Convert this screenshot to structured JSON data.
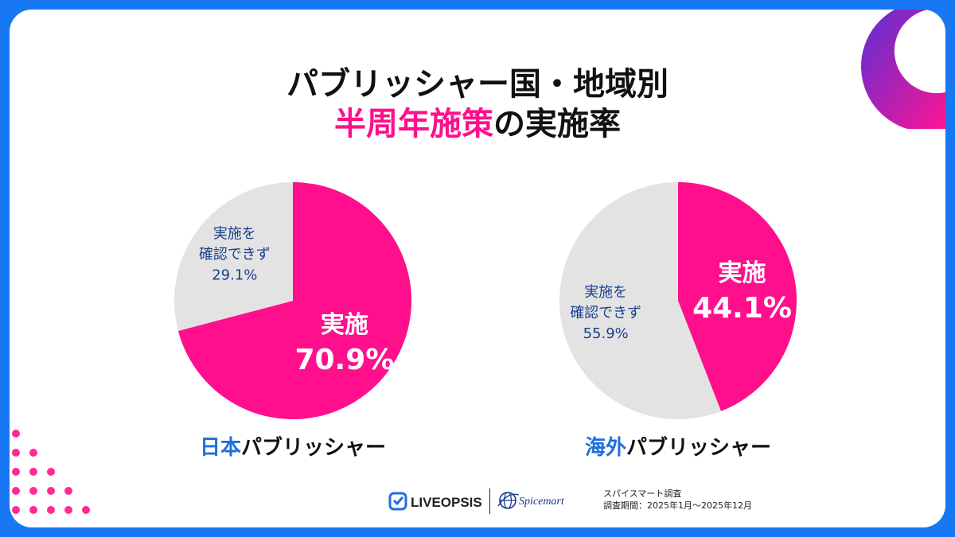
{
  "title": {
    "line1": "パブリッシャー国・地域別",
    "line2_accent": "半周年施策",
    "line2_rest": "の実施率"
  },
  "colors": {
    "accent": "#ff0f8c",
    "gray": "#e3e3e3",
    "blue": "#1f6fdc",
    "frame": "#1877f2"
  },
  "chart_data": [
    {
      "type": "pie",
      "name_prefix": "日本",
      "name_suffix": "パブリッシャー",
      "slices": [
        {
          "label": "実施",
          "value": 70.9,
          "value_text": "70.9%",
          "color": "#ff0f8c"
        },
        {
          "label": "実施を確認できず",
          "label_lines": [
            "実施を",
            "確認できず"
          ],
          "value": 29.1,
          "value_text": "29.1%",
          "color": "#e3e3e3"
        }
      ]
    },
    {
      "type": "pie",
      "name_prefix": "海外",
      "name_suffix": "パブリッシャー",
      "slices": [
        {
          "label": "実施",
          "value": 44.1,
          "value_text": "44.1%",
          "color": "#ff0f8c"
        },
        {
          "label": "実施を確認できず",
          "label_lines": [
            "実施を",
            "確認できず"
          ],
          "value": 55.9,
          "value_text": "55.9%",
          "color": "#e3e3e3"
        }
      ]
    }
  ],
  "footer": {
    "liveopsis": "LIVEOPSIS",
    "spicemart": "Spicemart",
    "survey": "スパイスマート調査",
    "period": "調査期間：2025年1月〜2025年12月"
  }
}
